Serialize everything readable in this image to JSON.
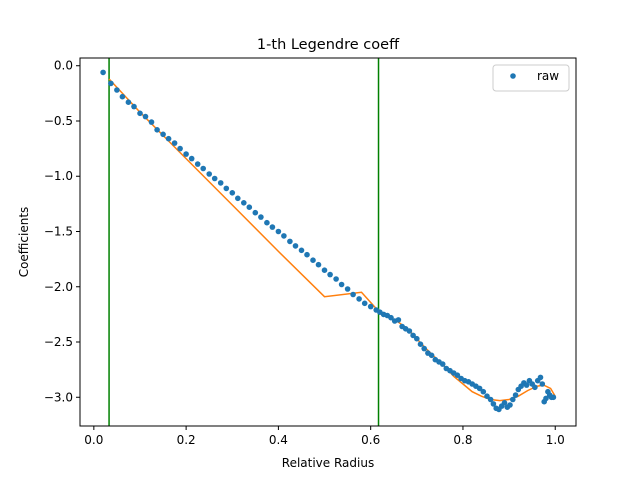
{
  "chart_data": {
    "type": "scatter",
    "title": "1-th Legendre coeff",
    "xlabel": "Relative Radius",
    "ylabel": "Coefficients",
    "xlim": [
      -0.03,
      1.045
    ],
    "ylim": [
      -3.26,
      0.07
    ],
    "xticks": [
      0.0,
      0.2,
      0.4,
      0.6,
      0.8,
      1.0
    ],
    "xtick_labels": [
      "0.0",
      "0.2",
      "0.4",
      "0.6",
      "0.8",
      "1.0"
    ],
    "yticks": [
      0.0,
      -0.5,
      -1.0,
      -1.5,
      -2.0,
      -2.5,
      -3.0
    ],
    "ytick_labels": [
      "0.0",
      "−0.5",
      "−1.0",
      "−1.5",
      "−2.0",
      "−2.5",
      "−3.0"
    ],
    "grid": false,
    "legend": {
      "placement": "top-right",
      "entries": [
        "raw"
      ]
    },
    "vertical_lines": [
      {
        "x": 0.033,
        "color": "#008000"
      },
      {
        "x": 0.617,
        "color": "#008000"
      }
    ],
    "colors": {
      "raw": "#1f77b4",
      "fit": "#ff7f0e",
      "vline": "#008000"
    },
    "series": [
      {
        "name": "raw",
        "kind": "scatter",
        "x": [
          0.02,
          0.037,
          0.05,
          0.062,
          0.075,
          0.087,
          0.1,
          0.112,
          0.125,
          0.137,
          0.15,
          0.162,
          0.175,
          0.187,
          0.2,
          0.212,
          0.225,
          0.237,
          0.25,
          0.262,
          0.275,
          0.287,
          0.3,
          0.312,
          0.325,
          0.337,
          0.35,
          0.362,
          0.375,
          0.387,
          0.4,
          0.412,
          0.425,
          0.437,
          0.45,
          0.462,
          0.475,
          0.487,
          0.5,
          0.512,
          0.525,
          0.537,
          0.55,
          0.562,
          0.575,
          0.587,
          0.6,
          0.612,
          0.62,
          0.628,
          0.636,
          0.644,
          0.652,
          0.66,
          0.668,
          0.676,
          0.684,
          0.692,
          0.7,
          0.708,
          0.716,
          0.724,
          0.732,
          0.74,
          0.748,
          0.756,
          0.764,
          0.772,
          0.78,
          0.788,
          0.796,
          0.804,
          0.812,
          0.82,
          0.828,
          0.836,
          0.844,
          0.852,
          0.86,
          0.866,
          0.872,
          0.878,
          0.884,
          0.89,
          0.896,
          0.902,
          0.908,
          0.914,
          0.92,
          0.926,
          0.932,
          0.938,
          0.944,
          0.95,
          0.956,
          0.962,
          0.968,
          0.972,
          0.976,
          0.98,
          0.984,
          0.988,
          0.992,
          0.996
        ],
        "y": [
          -0.06,
          -0.16,
          -0.22,
          -0.28,
          -0.33,
          -0.37,
          -0.43,
          -0.46,
          -0.51,
          -0.58,
          -0.62,
          -0.66,
          -0.7,
          -0.75,
          -0.8,
          -0.84,
          -0.89,
          -0.93,
          -0.98,
          -1.02,
          -1.06,
          -1.11,
          -1.15,
          -1.2,
          -1.24,
          -1.28,
          -1.33,
          -1.37,
          -1.42,
          -1.46,
          -1.5,
          -1.54,
          -1.59,
          -1.63,
          -1.67,
          -1.71,
          -1.76,
          -1.8,
          -1.85,
          -1.89,
          -1.93,
          -1.98,
          -2.02,
          -2.07,
          -2.11,
          -2.15,
          -2.18,
          -2.21,
          -2.23,
          -2.25,
          -2.26,
          -2.28,
          -2.31,
          -2.3,
          -2.36,
          -2.38,
          -2.4,
          -2.44,
          -2.47,
          -2.52,
          -2.56,
          -2.6,
          -2.62,
          -2.66,
          -2.68,
          -2.7,
          -2.74,
          -2.76,
          -2.78,
          -2.8,
          -2.83,
          -2.85,
          -2.86,
          -2.88,
          -2.9,
          -2.92,
          -2.95,
          -2.99,
          -3.02,
          -3.06,
          -3.1,
          -3.11,
          -3.08,
          -3.05,
          -3.09,
          -3.07,
          -3.02,
          -2.98,
          -2.93,
          -2.9,
          -2.87,
          -2.89,
          -2.85,
          -2.88,
          -2.91,
          -2.85,
          -2.82,
          -2.88,
          -3.04,
          -3.01,
          -2.95,
          -2.98,
          -3.0,
          -3.0
        ]
      },
      {
        "name": "",
        "kind": "line",
        "x": [
          0.033,
          0.1,
          0.2,
          0.3,
          0.4,
          0.5,
          0.58,
          0.617,
          0.64,
          0.66,
          0.68,
          0.7,
          0.72,
          0.74,
          0.76,
          0.78,
          0.8,
          0.82,
          0.84,
          0.86,
          0.88,
          0.9,
          0.92,
          0.94,
          0.96,
          0.975,
          0.99,
          1.0
        ],
        "y": [
          -0.12,
          -0.42,
          -0.84,
          -1.26,
          -1.68,
          -2.09,
          -2.05,
          -2.22,
          -2.27,
          -2.32,
          -2.38,
          -2.47,
          -2.56,
          -2.64,
          -2.72,
          -2.81,
          -2.88,
          -2.95,
          -2.99,
          -3.02,
          -3.03,
          -3.02,
          -2.99,
          -2.94,
          -2.9,
          -2.89,
          -2.92,
          -2.99
        ]
      }
    ]
  }
}
